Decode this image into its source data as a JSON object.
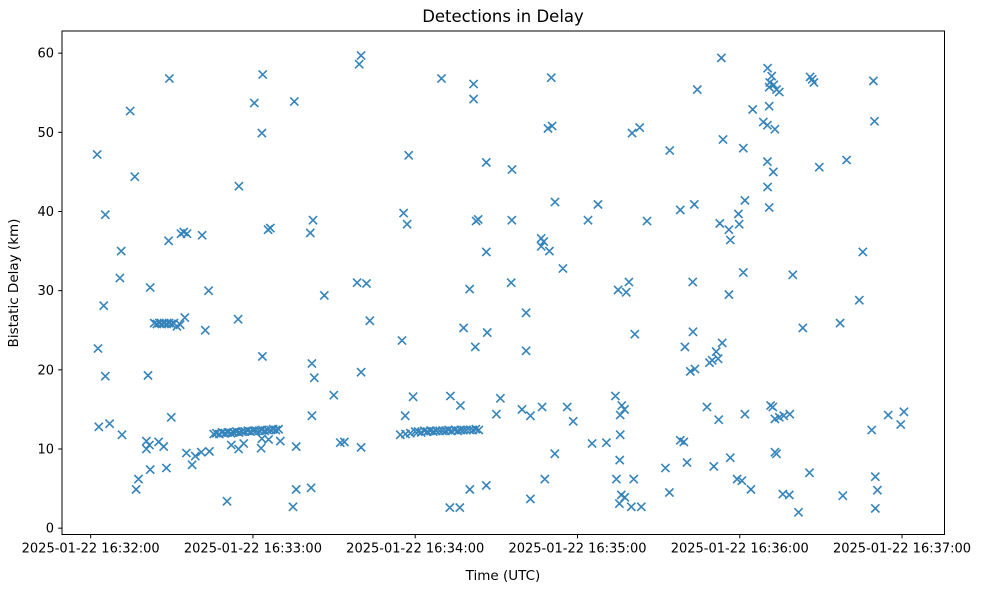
{
  "figure": {
    "background": "#ffffff",
    "spine_color": "#000000",
    "text_color": "#000000"
  },
  "chart_data": {
    "type": "scatter",
    "title": "Detections in Delay",
    "xlabel": "Time (UTC)",
    "ylabel": "Bistatic Delay (km)",
    "marker": "x",
    "marker_color": "#1f77b4",
    "grid": false,
    "legend": null,
    "x_base_time": "2025-01-22 16:32:00",
    "x_units": "seconds after 2025-01-22 16:32:00 UTC",
    "xlim_seconds": [
      -10.6,
      315.7
    ],
    "ylim": [
      -0.8,
      62.8
    ],
    "x_tick_seconds": [
      0,
      60,
      120,
      180,
      240,
      300
    ],
    "x_tick_labels": [
      "2025-01-22 16:32:00",
      "2025-01-22 16:33:00",
      "2025-01-22 16:34:00",
      "2025-01-22 16:35:00",
      "2025-01-22 16:36:00",
      "2025-01-22 16:37:00"
    ],
    "y_ticks": [
      0,
      10,
      20,
      30,
      40,
      50,
      60
    ],
    "y_tick_labels": [
      "0",
      "10",
      "20",
      "30",
      "40",
      "50",
      "60"
    ],
    "points": [
      [
        2.4,
        47.2
      ],
      [
        5.4,
        39.6
      ],
      [
        10.8,
        31.6
      ],
      [
        11.3,
        35.0
      ],
      [
        14.6,
        52.7
      ],
      [
        16.3,
        44.4
      ],
      [
        28.8,
        36.3
      ],
      [
        29.1,
        56.8
      ],
      [
        33.4,
        37.2
      ],
      [
        34.4,
        37.4
      ],
      [
        35.6,
        37.2
      ],
      [
        41.2,
        37.0
      ],
      [
        54.8,
        43.2
      ],
      [
        60.5,
        53.7
      ],
      [
        63.3,
        49.9
      ],
      [
        63.6,
        57.3
      ],
      [
        65.6,
        37.7
      ],
      [
        66.4,
        37.9
      ],
      [
        75.3,
        53.9
      ],
      [
        81.2,
        37.3
      ],
      [
        82.2,
        38.9
      ],
      [
        98.5,
        31.0
      ],
      [
        99.3,
        58.6
      ],
      [
        100.0,
        59.7
      ],
      [
        102.0,
        30.9
      ],
      [
        115.7,
        39.8
      ],
      [
        117.0,
        38.4
      ],
      [
        117.6,
        47.1
      ],
      [
        129.7,
        56.8
      ],
      [
        141.6,
        56.1
      ],
      [
        141.6,
        54.2
      ],
      [
        142.5,
        38.8
      ],
      [
        143.3,
        39.0
      ],
      [
        146.3,
        46.2
      ],
      [
        146.3,
        34.9
      ],
      [
        155.7,
        38.9
      ],
      [
        155.8,
        45.3
      ],
      [
        166.6,
        36.6
      ],
      [
        166.6,
        35.6
      ],
      [
        167.5,
        36.2
      ],
      [
        169.1,
        50.5
      ],
      [
        169.6,
        35.0
      ],
      [
        170.3,
        56.9
      ],
      [
        170.6,
        50.8
      ],
      [
        171.7,
        41.2
      ],
      [
        174.6,
        32.8
      ],
      [
        183.9,
        38.9
      ],
      [
        187.6,
        40.9
      ],
      [
        200.2,
        49.9
      ],
      [
        203.0,
        50.6
      ],
      [
        205.7,
        38.8
      ],
      [
        214.1,
        47.7
      ],
      [
        218.0,
        40.2
      ],
      [
        223.2,
        40.9
      ],
      [
        224.3,
        55.4
      ],
      [
        232.6,
        38.5
      ],
      [
        233.2,
        59.4
      ],
      [
        233.8,
        49.1
      ],
      [
        236.0,
        37.7
      ],
      [
        236.5,
        36.4
      ],
      [
        239.5,
        39.7
      ],
      [
        239.8,
        38.4
      ],
      [
        241.3,
        48.0
      ],
      [
        241.3,
        32.3
      ],
      [
        241.9,
        41.4
      ],
      [
        244.8,
        52.9
      ],
      [
        248.7,
        51.3
      ],
      [
        250.2,
        50.9
      ],
      [
        250.2,
        46.3
      ],
      [
        250.3,
        58.1
      ],
      [
        250.3,
        43.1
      ],
      [
        250.9,
        55.7
      ],
      [
        250.9,
        53.3
      ],
      [
        250.9,
        40.5
      ],
      [
        251.1,
        56.3
      ],
      [
        251.8,
        57.1
      ],
      [
        252.4,
        45.0
      ],
      [
        252.6,
        56.0
      ],
      [
        253.0,
        50.4
      ],
      [
        253.6,
        55.4
      ],
      [
        254.6,
        55.1
      ],
      [
        259.6,
        32.0
      ],
      [
        266.0,
        57.0
      ],
      [
        266.8,
        56.7
      ],
      [
        267.4,
        56.3
      ],
      [
        269.4,
        45.6
      ],
      [
        279.5,
        46.5
      ],
      [
        285.5,
        34.9
      ],
      [
        289.4,
        56.5
      ],
      [
        289.8,
        51.4
      ],
      [
        2.7,
        22.7
      ],
      [
        3.0,
        12.8
      ],
      [
        4.8,
        28.1
      ],
      [
        5.4,
        19.2
      ],
      [
        7.0,
        13.2
      ],
      [
        11.6,
        11.8
      ],
      [
        16.8,
        4.9
      ],
      [
        17.7,
        6.2
      ],
      [
        20.6,
        11.0
      ],
      [
        20.6,
        10.0
      ],
      [
        21.2,
        19.3
      ],
      [
        21.7,
        10.5
      ],
      [
        22.0,
        30.4
      ],
      [
        22.0,
        7.4
      ],
      [
        23.5,
        25.9
      ],
      [
        24.5,
        25.8
      ],
      [
        25.1,
        10.9
      ],
      [
        25.4,
        25.9
      ],
      [
        26.3,
        25.8
      ],
      [
        27.0,
        10.3
      ],
      [
        27.2,
        25.9
      ],
      [
        28.0,
        7.6
      ],
      [
        28.1,
        25.8
      ],
      [
        29.0,
        25.9
      ],
      [
        29.8,
        14.0
      ],
      [
        29.9,
        25.8
      ],
      [
        30.8,
        25.9
      ],
      [
        31.9,
        25.5
      ],
      [
        33.1,
        25.7
      ],
      [
        34.8,
        26.6
      ],
      [
        35.4,
        9.5
      ],
      [
        37.5,
        8.0
      ],
      [
        38.7,
        9.1
      ],
      [
        40.9,
        9.6
      ],
      [
        42.4,
        25.0
      ],
      [
        43.6,
        30.0
      ],
      [
        43.9,
        9.7
      ],
      [
        50.4,
        3.4
      ],
      [
        52.0,
        10.5
      ],
      [
        54.5,
        26.4
      ],
      [
        54.7,
        10.0
      ],
      [
        56.6,
        10.7
      ],
      [
        63.0,
        10.1
      ],
      [
        63.3,
        11.3
      ],
      [
        63.5,
        21.7
      ],
      [
        65.8,
        11.2
      ],
      [
        70.1,
        11.0
      ],
      [
        76.0,
        10.3
      ],
      [
        45.5,
        11.9
      ],
      [
        46.5,
        12.0
      ],
      [
        47.6,
        11.9
      ],
      [
        48.6,
        12.1
      ],
      [
        49.7,
        12.0
      ],
      [
        50.7,
        12.1
      ],
      [
        51.8,
        12.0
      ],
      [
        52.8,
        12.1
      ],
      [
        53.9,
        12.2
      ],
      [
        54.9,
        12.1
      ],
      [
        56.0,
        12.2
      ],
      [
        57.0,
        12.2
      ],
      [
        58.1,
        12.3
      ],
      [
        59.1,
        12.2
      ],
      [
        60.2,
        12.3
      ],
      [
        61.2,
        12.3
      ],
      [
        62.3,
        12.3
      ],
      [
        63.3,
        12.4
      ],
      [
        64.4,
        12.3
      ],
      [
        65.4,
        12.4
      ],
      [
        66.5,
        12.4
      ],
      [
        67.5,
        12.5
      ],
      [
        68.5,
        12.4
      ],
      [
        69.5,
        12.5
      ],
      [
        74.8,
        2.7
      ],
      [
        76.0,
        4.9
      ],
      [
        81.5,
        5.1
      ],
      [
        81.8,
        20.8
      ],
      [
        81.8,
        14.2
      ],
      [
        82.7,
        19.0
      ],
      [
        86.4,
        29.4
      ],
      [
        89.9,
        16.8
      ],
      [
        92.3,
        10.8
      ],
      [
        93.8,
        10.9
      ],
      [
        100.0,
        19.7
      ],
      [
        100.0,
        10.2
      ],
      [
        103.2,
        26.2
      ],
      [
        115.1,
        23.7
      ],
      [
        116.3,
        14.2
      ],
      [
        119.2,
        16.6
      ],
      [
        132.8,
        2.6
      ],
      [
        133.0,
        16.7
      ],
      [
        136.5,
        2.6
      ],
      [
        136.7,
        15.5
      ],
      [
        137.9,
        25.3
      ],
      [
        140.1,
        30.2
      ],
      [
        140.2,
        4.9
      ],
      [
        142.2,
        22.9
      ],
      [
        146.3,
        5.4
      ],
      [
        146.6,
        24.7
      ],
      [
        150.0,
        14.4
      ],
      [
        151.5,
        16.4
      ],
      [
        155.5,
        31.0
      ],
      [
        114.5,
        11.8
      ],
      [
        116.4,
        11.9
      ],
      [
        118.2,
        12.0
      ],
      [
        120.0,
        12.2
      ],
      [
        121.1,
        12.2
      ],
      [
        122.2,
        12.1
      ],
      [
        123.4,
        12.3
      ],
      [
        124.5,
        12.2
      ],
      [
        125.6,
        12.3
      ],
      [
        126.7,
        12.2
      ],
      [
        127.8,
        12.3
      ],
      [
        129.0,
        12.3
      ],
      [
        130.1,
        12.3
      ],
      [
        131.2,
        12.3
      ],
      [
        132.3,
        12.4
      ],
      [
        133.4,
        12.3
      ],
      [
        134.6,
        12.4
      ],
      [
        135.7,
        12.3
      ],
      [
        136.8,
        12.4
      ],
      [
        137.9,
        12.4
      ],
      [
        139.0,
        12.4
      ],
      [
        140.2,
        12.4
      ],
      [
        141.3,
        12.4
      ],
      [
        142.4,
        12.5
      ],
      [
        143.5,
        12.4
      ],
      [
        159.5,
        15.0
      ],
      [
        161.0,
        27.2
      ],
      [
        161.0,
        22.4
      ],
      [
        162.6,
        14.2
      ],
      [
        162.6,
        3.7
      ],
      [
        166.9,
        15.3
      ],
      [
        167.9,
        6.2
      ],
      [
        171.6,
        9.4
      ],
      [
        176.2,
        15.3
      ],
      [
        178.4,
        13.5
      ],
      [
        185.4,
        10.7
      ],
      [
        190.7,
        10.8
      ],
      [
        194.0,
        16.7
      ],
      [
        194.4,
        6.2
      ],
      [
        195.0,
        30.1
      ],
      [
        195.5,
        3.1
      ],
      [
        195.6,
        8.6
      ],
      [
        195.8,
        14.3
      ],
      [
        195.8,
        11.8
      ],
      [
        196.2,
        4.2
      ],
      [
        197.5,
        3.9
      ],
      [
        196.4,
        15.5
      ],
      [
        197.4,
        15.0
      ],
      [
        198.0,
        29.8
      ],
      [
        199.0,
        31.1
      ],
      [
        199.9,
        2.7
      ],
      [
        200.8,
        6.2
      ],
      [
        201.2,
        24.5
      ],
      [
        203.6,
        2.7
      ],
      [
        212.5,
        7.6
      ],
      [
        214.0,
        4.5
      ],
      [
        218.0,
        11.1
      ],
      [
        219.3,
        10.9
      ],
      [
        219.7,
        22.9
      ],
      [
        220.5,
        8.3
      ],
      [
        221.7,
        19.8
      ],
      [
        222.6,
        31.1
      ],
      [
        222.7,
        24.8
      ],
      [
        223.4,
        20.1
      ],
      [
        227.9,
        15.3
      ],
      [
        228.8,
        20.9
      ],
      [
        229.8,
        21.2
      ],
      [
        230.4,
        7.8
      ],
      [
        231.3,
        22.3
      ],
      [
        232.0,
        21.4
      ],
      [
        232.2,
        13.7
      ],
      [
        233.5,
        23.4
      ],
      [
        236.0,
        29.5
      ],
      [
        236.5,
        8.9
      ],
      [
        239.0,
        6.2
      ],
      [
        240.8,
        6.0
      ],
      [
        241.9,
        14.4
      ],
      [
        244.1,
        4.9
      ],
      [
        251.4,
        15.5
      ],
      [
        252.2,
        15.3
      ],
      [
        253.0,
        13.8
      ],
      [
        253.0,
        9.6
      ],
      [
        253.6,
        9.4
      ],
      [
        254.6,
        14.0
      ],
      [
        255.9,
        4.3
      ],
      [
        256.3,
        14.2
      ],
      [
        258.3,
        4.2
      ],
      [
        258.5,
        14.4
      ],
      [
        261.7,
        2.0
      ],
      [
        263.3,
        25.3
      ],
      [
        265.8,
        7.0
      ],
      [
        277.1,
        25.9
      ],
      [
        278.1,
        4.1
      ],
      [
        284.2,
        28.8
      ],
      [
        288.8,
        12.4
      ],
      [
        290.1,
        6.5
      ],
      [
        290.1,
        2.5
      ],
      [
        290.9,
        4.8
      ],
      [
        294.9,
        14.3
      ],
      [
        299.5,
        13.1
      ],
      [
        300.7,
        14.7
      ]
    ]
  }
}
